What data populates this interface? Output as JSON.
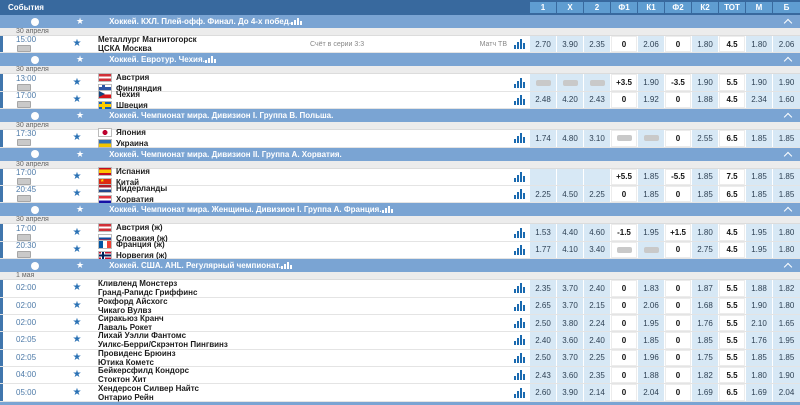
{
  "header": {
    "events_label": "События",
    "odds_columns": [
      "1",
      "X",
      "2",
      "Ф1",
      "К1",
      "Ф2",
      "К2",
      "ТОТ",
      "М",
      "Б"
    ]
  },
  "colors": {
    "topbar_blue": "#38699e",
    "column_header_blue": "#5f9dd1",
    "section_header_blue": "#7aa4d3",
    "odds_cell_blue": "#d7e8f5",
    "row_accent_blue": "#4076ad",
    "star_blue": "#2b72b5",
    "chart_bar_blue": "#1a6ab0"
  },
  "icons": {
    "favorite_star": "★",
    "sport_disc": "●",
    "collapse_chevron": "⌃",
    "stats_chart": "bar-chart",
    "tv_badge": "▭"
  },
  "sections": [
    {
      "title": "Хоккей. КХЛ. Плей-офф. Финал. До 4-х побед.",
      "chart_icon": true,
      "date": "30 апреля",
      "matches": [
        {
          "time": "15:00",
          "tv_badge": true,
          "teams": [
            {
              "name": "Металлург Магнитогорск"
            },
            {
              "name": "ЦСКА Москва"
            }
          ],
          "note": "Счёт в серии 3:3",
          "tv_label": "Матч ТВ",
          "odds": [
            "2.70",
            "3.90",
            "2.35",
            "0",
            "2.06",
            "0",
            "1.80",
            "4.5",
            "1.80",
            "2.06"
          ],
          "blurred": []
        }
      ]
    },
    {
      "title": "Хоккей. Евротур. Чехия.",
      "chart_icon": true,
      "date": "30 апреля",
      "matches": [
        {
          "time": "13:00",
          "tv_badge": true,
          "teams": [
            {
              "name": "Австрия",
              "flag": "at"
            },
            {
              "name": "Финляндия",
              "flag": "fi"
            }
          ],
          "odds": [
            "",
            "",
            "",
            "+3.5",
            "1.90",
            "-3.5",
            "1.90",
            "5.5",
            "1.90",
            "1.90"
          ],
          "blurred": [
            0,
            1,
            2
          ]
        },
        {
          "time": "17:00",
          "tv_badge": true,
          "teams": [
            {
              "name": "Чехия",
              "flag": "cz"
            },
            {
              "name": "Швеция",
              "flag": "se"
            }
          ],
          "odds": [
            "2.48",
            "4.20",
            "2.43",
            "0",
            "1.92",
            "0",
            "1.88",
            "4.5",
            "2.34",
            "1.60"
          ],
          "blurred": []
        }
      ]
    },
    {
      "title": "Хоккей. Чемпионат мира. Дивизион I. Группа B. Польша.",
      "chart_icon": false,
      "date": "30 апреля",
      "matches": [
        {
          "time": "17:30",
          "tv_badge": true,
          "teams": [
            {
              "name": "Япония",
              "flag": "jp"
            },
            {
              "name": "Украина",
              "flag": "ua"
            }
          ],
          "odds": [
            "1.74",
            "4.80",
            "3.10",
            "",
            "",
            "0",
            "2.55",
            "6.5",
            "1.85",
            "1.85"
          ],
          "blurred": [
            3,
            4
          ]
        }
      ]
    },
    {
      "title": "Хоккей. Чемпионат мира. Дивизион II. Группа A. Хорватия.",
      "chart_icon": false,
      "date": "30 апреля",
      "matches": [
        {
          "time": "17:00",
          "tv_badge": true,
          "teams": [
            {
              "name": "Испания",
              "flag": "es"
            },
            {
              "name": "Китай",
              "flag": "cn"
            }
          ],
          "odds": [
            "",
            "",
            "",
            "+5.5",
            "1.85",
            "-5.5",
            "1.85",
            "7.5",
            "1.85",
            "1.85"
          ],
          "blurred": []
        },
        {
          "time": "20:45",
          "tv_badge": true,
          "teams": [
            {
              "name": "Нидерланды",
              "flag": "nl"
            },
            {
              "name": "Хорватия",
              "flag": "hr"
            }
          ],
          "odds": [
            "2.25",
            "4.50",
            "2.25",
            "0",
            "1.85",
            "0",
            "1.85",
            "6.5",
            "1.85",
            "1.85"
          ],
          "blurred": []
        }
      ]
    },
    {
      "title": "Хоккей. Чемпионат мира. Женщины. Дивизион I. Группа A. Франция.",
      "chart_icon": true,
      "date": "30 апреля",
      "matches": [
        {
          "time": "17:00",
          "tv_badge": true,
          "teams": [
            {
              "name": "Австрия (ж)",
              "flag": "at"
            },
            {
              "name": "Словакия (ж)",
              "flag": "sk"
            }
          ],
          "odds": [
            "1.53",
            "4.40",
            "4.60",
            "-1.5",
            "1.95",
            "+1.5",
            "1.80",
            "4.5",
            "1.95",
            "1.80"
          ],
          "blurred": []
        },
        {
          "time": "20:30",
          "tv_badge": true,
          "teams": [
            {
              "name": "Франция (ж)",
              "flag": "fr"
            },
            {
              "name": "Норвегия (ж)",
              "flag": "no"
            }
          ],
          "odds": [
            "1.77",
            "4.10",
            "3.40",
            "",
            "",
            "0",
            "2.75",
            "4.5",
            "1.95",
            "1.80"
          ],
          "blurred": [
            3,
            4
          ]
        }
      ]
    },
    {
      "title": "Хоккей. США. AHL. Регулярный чемпионат.",
      "chart_icon": true,
      "date": "1 мая",
      "matches": [
        {
          "time": "02:00",
          "tv_badge": false,
          "teams": [
            {
              "name": "Кливленд Монстерз"
            },
            {
              "name": "Гранд-Рапидс Гриффинс"
            }
          ],
          "odds": [
            "2.35",
            "3.70",
            "2.40",
            "0",
            "1.83",
            "0",
            "1.87",
            "5.5",
            "1.88",
            "1.82"
          ],
          "blurred": []
        },
        {
          "time": "02:00",
          "tv_badge": false,
          "teams": [
            {
              "name": "Рокфорд Айсхогс"
            },
            {
              "name": "Чикаго Вулвз"
            }
          ],
          "odds": [
            "2.65",
            "3.70",
            "2.15",
            "0",
            "2.06",
            "0",
            "1.68",
            "5.5",
            "1.90",
            "1.80"
          ],
          "blurred": []
        },
        {
          "time": "02:00",
          "tv_badge": false,
          "teams": [
            {
              "name": "Сиракьюз Кранч"
            },
            {
              "name": "Лаваль Рокет"
            }
          ],
          "odds": [
            "2.50",
            "3.80",
            "2.24",
            "0",
            "1.95",
            "0",
            "1.76",
            "5.5",
            "2.10",
            "1.65"
          ],
          "blurred": []
        },
        {
          "time": "02:05",
          "tv_badge": false,
          "teams": [
            {
              "name": "Лихай Уэлли Фантомс"
            },
            {
              "name": "Уилкс-Берри/Скрэнтон Пингвинз"
            }
          ],
          "odds": [
            "2.40",
            "3.60",
            "2.40",
            "0",
            "1.85",
            "0",
            "1.85",
            "5.5",
            "1.76",
            "1.95"
          ],
          "blurred": []
        },
        {
          "time": "02:05",
          "tv_badge": false,
          "teams": [
            {
              "name": "Провиденс Брюинз"
            },
            {
              "name": "Ютика Кометс"
            }
          ],
          "odds": [
            "2.50",
            "3.70",
            "2.25",
            "0",
            "1.96",
            "0",
            "1.75",
            "5.5",
            "1.85",
            "1.85"
          ],
          "blurred": []
        },
        {
          "time": "04:00",
          "tv_badge": false,
          "teams": [
            {
              "name": "Бейкерсфилд Кондорс"
            },
            {
              "name": "Стоктон Хит"
            }
          ],
          "odds": [
            "2.43",
            "3.60",
            "2.35",
            "0",
            "1.88",
            "0",
            "1.82",
            "5.5",
            "1.80",
            "1.90"
          ],
          "blurred": []
        },
        {
          "time": "05:00",
          "tv_badge": false,
          "teams": [
            {
              "name": "Хендерсон Силвер Найтс"
            },
            {
              "name": "Онтарио Рейн"
            }
          ],
          "odds": [
            "2.60",
            "3.90",
            "2.14",
            "0",
            "2.04",
            "0",
            "1.69",
            "6.5",
            "1.69",
            "2.04"
          ],
          "blurred": []
        }
      ]
    }
  ]
}
